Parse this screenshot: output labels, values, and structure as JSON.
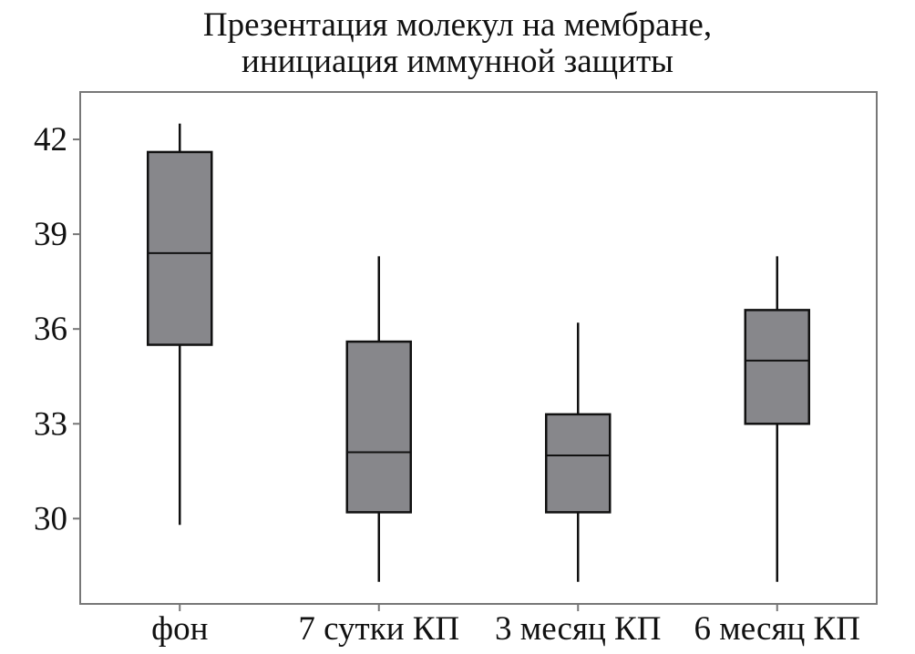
{
  "chart_data": {
    "type": "box",
    "title_lines": [
      "Презентация молекул на мембране,",
      "инициация иммунной защиты"
    ],
    "xlabel": "",
    "ylabel": "",
    "categories": [
      "фон",
      "7 сутки КП",
      "3 месяц КП",
      "6 месяц КП"
    ],
    "boxes": [
      {
        "category": "фон",
        "whisker_low": 29.8,
        "q1": 35.5,
        "median": 38.4,
        "q3": 41.6,
        "whisker_high": 42.5
      },
      {
        "category": "7 сутки КП",
        "whisker_low": 28.0,
        "q1": 30.2,
        "median": 32.1,
        "q3": 35.6,
        "whisker_high": 38.3
      },
      {
        "category": "3 месяц КП",
        "whisker_low": 28.0,
        "q1": 30.2,
        "median": 32.0,
        "q3": 33.3,
        "whisker_high": 36.2
      },
      {
        "category": "6 месяц КП",
        "whisker_low": 28.0,
        "q1": 33.0,
        "median": 35.0,
        "q3": 36.6,
        "whisker_high": 38.3
      }
    ],
    "yticks": [
      30,
      33,
      36,
      39,
      42
    ],
    "ytick_labels": [
      "30",
      "33",
      "36",
      "39",
      "42"
    ],
    "ylim": [
      27.3,
      43.5
    ],
    "grid": false,
    "box_color": "#87878b",
    "line_color": "#111111",
    "frame_color": "#777777"
  }
}
